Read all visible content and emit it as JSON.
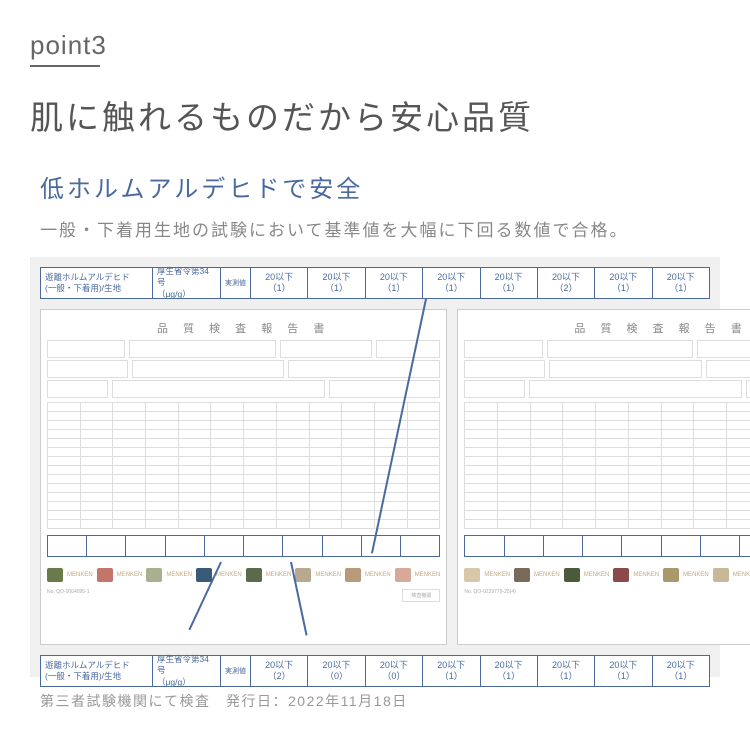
{
  "header": {
    "point_label": "point3",
    "main_title": "肌に触れるものだから安心品質",
    "sub_title": "低ホルムアルデヒドで安全",
    "description": "一般・下着用生地の試験において基準値を大幅に下回る数値で合格。"
  },
  "strip": {
    "label_line1": "遊離ホルムアルデヒド",
    "label_line2": "(一般・下着用)/生地",
    "sub_line1": "厚生省令第34号",
    "sub_line2": "（μg/g）",
    "measure": "実測値"
  },
  "strip_top_values": [
    {
      "top": "20以下",
      "bottom": "（1）"
    },
    {
      "top": "20以下",
      "bottom": "（1）"
    },
    {
      "top": "20以下",
      "bottom": "（1）"
    },
    {
      "top": "20以下",
      "bottom": "（1）"
    },
    {
      "top": "20以下",
      "bottom": "（1）"
    },
    {
      "top": "20以下",
      "bottom": "（2）"
    },
    {
      "top": "20以下",
      "bottom": "（1）"
    },
    {
      "top": "20以下",
      "bottom": "（1）"
    }
  ],
  "strip_bottom_values": [
    {
      "top": "20以下",
      "bottom": "（2）"
    },
    {
      "top": "20以下",
      "bottom": "（0）"
    },
    {
      "top": "20以下",
      "bottom": "（0）"
    },
    {
      "top": "20以下",
      "bottom": "（1）"
    },
    {
      "top": "20以下",
      "bottom": "（1）"
    },
    {
      "top": "20以下",
      "bottom": "（1）"
    },
    {
      "top": "20以下",
      "bottom": "（1）"
    },
    {
      "top": "20以下",
      "bottom": "（1）"
    }
  ],
  "doc": {
    "title": "品 質 検 査 報 告 書",
    "swatch_label": "MENKEN",
    "swatch_colors": [
      "#6a7a4a",
      "#c4756a",
      "#a8b090",
      "#3a5a7a",
      "#5a6a4a",
      "#b8a890",
      "#b89a7a",
      "#d8a898"
    ],
    "swatch_colors2": [
      "#d8c8a8",
      "#7a6a5a",
      "#4a5a3a",
      "#8a4a4a",
      "#a8986a",
      "#c8b898",
      "#4a5a6a",
      "#b8a888"
    ]
  },
  "footnote": "第三者試験機関にて検査　発行日：2022年11月18日",
  "colors": {
    "accent": "#4a6a9e",
    "text_gray": "#666666",
    "text_light": "#888888"
  }
}
